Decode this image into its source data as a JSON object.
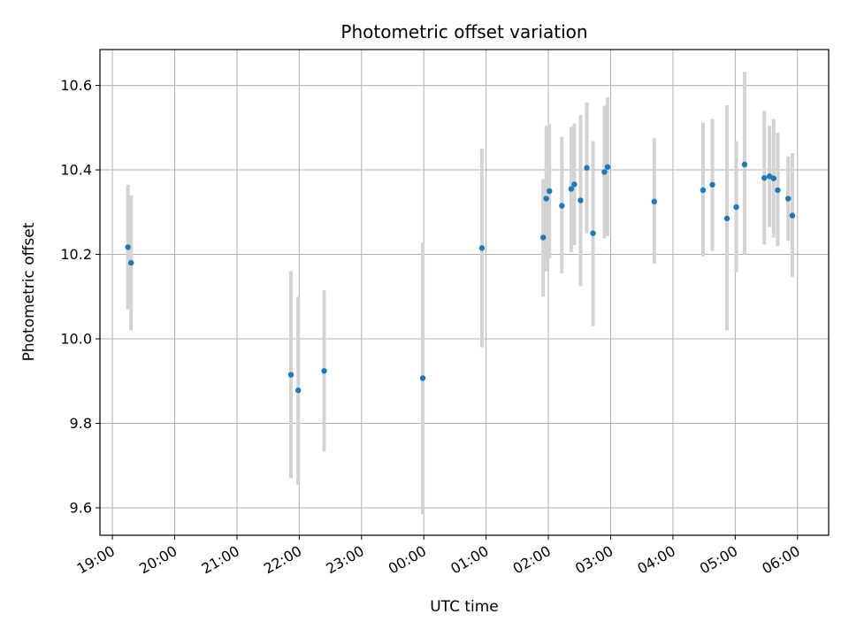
{
  "chart_data": {
    "type": "scatter",
    "title": "Photometric offset variation",
    "xlabel": "UTC time",
    "ylabel": "Photometric offset",
    "x_axis": {
      "kind": "time",
      "start": "19:00",
      "end": "06:00",
      "xlim": [
        "18:48",
        "06:30"
      ],
      "tick_labels": [
        "19:00",
        "20:00",
        "21:00",
        "22:00",
        "23:00",
        "00:00",
        "01:00",
        "02:00",
        "03:00",
        "04:00",
        "05:00",
        "06:00"
      ],
      "tick_label_rotation": "slanted"
    },
    "y_axis": {
      "ylim": [
        9.535,
        10.685
      ],
      "ticks": [
        9.6,
        9.8,
        10.0,
        10.2,
        10.4,
        10.6
      ],
      "tick_labels": [
        "9.6",
        "9.8",
        "10.0",
        "10.2",
        "10.4",
        "10.6"
      ]
    },
    "grid": true,
    "legend": "none",
    "colors": {
      "marker": "#1f77b4",
      "errorbar": "#d3d3d3",
      "grid": "#b0b0b0",
      "axes": "#000000"
    },
    "series": [
      {
        "points": [
          {
            "x": "19:15",
            "y": 10.217,
            "ylo": 10.07,
            "yhi": 10.365
          },
          {
            "x": "19:18",
            "y": 10.18,
            "ylo": 10.02,
            "yhi": 10.34
          },
          {
            "x": "21:52",
            "y": 9.915,
            "ylo": 9.67,
            "yhi": 10.16
          },
          {
            "x": "21:59",
            "y": 9.878,
            "ylo": 9.655,
            "yhi": 10.1
          },
          {
            "x": "22:24",
            "y": 9.924,
            "ylo": 9.733,
            "yhi": 10.115
          },
          {
            "x": "23:59",
            "y": 9.907,
            "ylo": 9.585,
            "yhi": 10.228
          },
          {
            "x": "00:56",
            "y": 10.215,
            "ylo": 9.98,
            "yhi": 10.45
          },
          {
            "x": "01:55",
            "y": 10.24,
            "ylo": 10.1,
            "yhi": 10.378
          },
          {
            "x": "01:58",
            "y": 10.332,
            "ylo": 10.16,
            "yhi": 10.505
          },
          {
            "x": "02:01",
            "y": 10.35,
            "ylo": 10.19,
            "yhi": 10.51
          },
          {
            "x": "02:13",
            "y": 10.315,
            "ylo": 10.155,
            "yhi": 10.478
          },
          {
            "x": "02:22",
            "y": 10.355,
            "ylo": 10.205,
            "yhi": 10.502
          },
          {
            "x": "02:25",
            "y": 10.366,
            "ylo": 10.222,
            "yhi": 10.51
          },
          {
            "x": "02:31",
            "y": 10.328,
            "ylo": 10.125,
            "yhi": 10.53
          },
          {
            "x": "02:37",
            "y": 10.405,
            "ylo": 10.25,
            "yhi": 10.56
          },
          {
            "x": "02:43",
            "y": 10.25,
            "ylo": 10.03,
            "yhi": 10.468
          },
          {
            "x": "02:54",
            "y": 10.395,
            "ylo": 10.238,
            "yhi": 10.552
          },
          {
            "x": "02:57",
            "y": 10.407,
            "ylo": 10.243,
            "yhi": 10.572
          },
          {
            "x": "03:42",
            "y": 10.325,
            "ylo": 10.178,
            "yhi": 10.475
          },
          {
            "x": "04:29",
            "y": 10.352,
            "ylo": 10.195,
            "yhi": 10.512
          },
          {
            "x": "04:38",
            "y": 10.365,
            "ylo": 10.208,
            "yhi": 10.52
          },
          {
            "x": "04:52",
            "y": 10.285,
            "ylo": 10.02,
            "yhi": 10.553
          },
          {
            "x": "05:01",
            "y": 10.312,
            "ylo": 10.158,
            "yhi": 10.468
          },
          {
            "x": "05:09",
            "y": 10.413,
            "ylo": 10.2,
            "yhi": 10.632
          },
          {
            "x": "05:28",
            "y": 10.381,
            "ylo": 10.223,
            "yhi": 10.54
          },
          {
            "x": "05:33",
            "y": 10.385,
            "ylo": 10.265,
            "yhi": 10.505
          },
          {
            "x": "05:37",
            "y": 10.38,
            "ylo": 10.24,
            "yhi": 10.52
          },
          {
            "x": "05:41",
            "y": 10.352,
            "ylo": 10.22,
            "yhi": 10.488
          },
          {
            "x": "05:51",
            "y": 10.332,
            "ylo": 10.232,
            "yhi": 10.432
          },
          {
            "x": "05:55",
            "y": 10.292,
            "ylo": 10.147,
            "yhi": 10.44
          }
        ]
      }
    ]
  }
}
